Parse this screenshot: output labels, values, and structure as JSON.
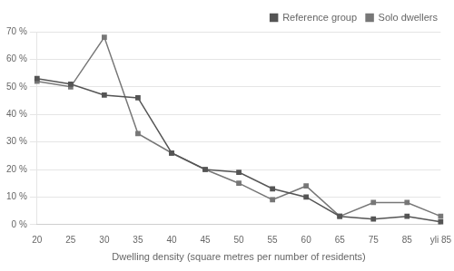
{
  "chart_data": {
    "type": "line",
    "x_label": "Dwelling density (square metres per number of residents)",
    "categories": [
      "20",
      "25",
      "30",
      "35",
      "40",
      "45",
      "50",
      "55",
      "60",
      "65",
      "75",
      "85",
      "yli 85"
    ],
    "series": [
      {
        "name": "Reference group",
        "color": "#555555",
        "marker": "square",
        "values": [
          53,
          51,
          47,
          46,
          26,
          20,
          19,
          13,
          10,
          3,
          2,
          3,
          1
        ]
      },
      {
        "name": "Solo dwellers",
        "color": "#777777",
        "marker": "square",
        "values": [
          52,
          50,
          68,
          33,
          26,
          20,
          15,
          9,
          14,
          3,
          8,
          8,
          3
        ]
      }
    ],
    "ylim": [
      0,
      70
    ],
    "yticks": [
      {
        "value": 0,
        "label": "0 %"
      },
      {
        "value": 10,
        "label": "10 %"
      },
      {
        "value": 20,
        "label": "20 %"
      },
      {
        "value": 30,
        "label": "30 %"
      },
      {
        "value": 40,
        "label": "40 %"
      },
      {
        "value": 50,
        "label": "50 %"
      },
      {
        "value": 60,
        "label": "60 %"
      },
      {
        "value": 70,
        "label": "70 %"
      }
    ],
    "grid": true,
    "legend": "upper right"
  }
}
